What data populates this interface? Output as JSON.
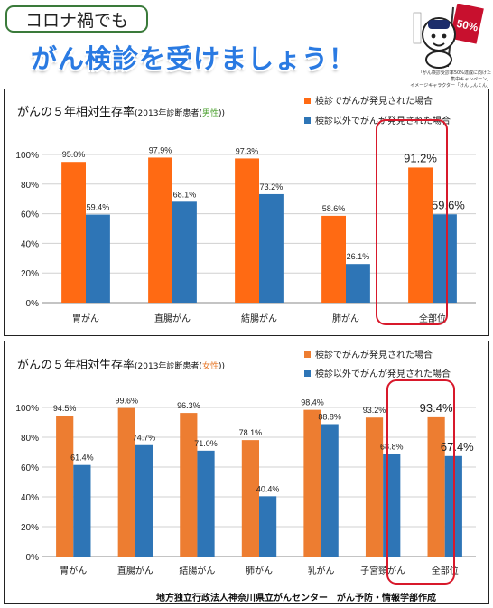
{
  "header": {
    "tag_text": "コロナ禍でも",
    "headline": "がん検診を受けましょう！",
    "campaign_lines": [
      "「がん検診受診率50%達成に向けた",
      "集中キャンペーン」",
      "イメージキャラクター「けんしんくん」"
    ],
    "mascot_flag_text": "50%"
  },
  "colors": {
    "detected": "#ff6a13",
    "other": "#2e75b6",
    "highlight": "#d8192b",
    "tag_border": "#3a7a3a",
    "headline": "#2a7ae2"
  },
  "chart_data": [
    {
      "type": "bar",
      "title": "がんの５年相対生存率",
      "subtitle_pre": "(2013年診断患者(",
      "subtitle_sex": "男性",
      "subtitle_post": "))",
      "sex_color": "#4aa02c",
      "categories": [
        "胃がん",
        "直腸がん",
        "結腸がん",
        "肺がん",
        "全部位"
      ],
      "series": [
        {
          "name": "検診でがんが発見された場合",
          "values": [
            95.0,
            97.9,
            97.3,
            58.6,
            91.2
          ],
          "labels": [
            "95.0%",
            "97.9%",
            "97.3%",
            "58.6%",
            "91.2%"
          ],
          "color": "#ff6a13"
        },
        {
          "name": "検診以外でがんが発見された場合",
          "values": [
            59.4,
            68.1,
            73.2,
            26.1,
            59.6
          ],
          "labels": [
            "59.4%",
            "68.1%",
            "73.2%",
            "26.1%",
            "59.6%"
          ],
          "color": "#2e75b6"
        }
      ],
      "yticks": [
        "0%",
        "20%",
        "40%",
        "60%",
        "80%",
        "100%"
      ],
      "ylim": [
        0,
        100
      ],
      "highlight_category": "全部位",
      "legend_position": "top-right",
      "grid": true
    },
    {
      "type": "bar",
      "title": "がんの５年相対生存率",
      "subtitle_pre": "(2013年診断患者(",
      "subtitle_sex": "女性",
      "subtitle_post": "))",
      "sex_color": "#e8792a",
      "categories": [
        "胃がん",
        "直腸がん",
        "結腸がん",
        "肺がん",
        "乳がん",
        "子宮頸がん",
        "全部位"
      ],
      "series": [
        {
          "name": "検診でがんが発見された場合",
          "values": [
            94.5,
            99.6,
            96.3,
            78.1,
            98.4,
            93.2,
            93.4
          ],
          "labels": [
            "94.5%",
            "99.6%",
            "96.3%",
            "78.1%",
            "98.4%",
            "93.2%",
            "93.4%"
          ],
          "color": "#ed7d31"
        },
        {
          "name": "検診以外でがんが発見された場合",
          "values": [
            61.4,
            74.7,
            71.0,
            40.4,
            88.8,
            68.8,
            67.4
          ],
          "labels": [
            "61.4%",
            "74.7%",
            "71.0%",
            "40.4%",
            "88.8%",
            "68.8%",
            "67.4%"
          ],
          "color": "#2e75b6"
        }
      ],
      "yticks": [
        "0%",
        "20%",
        "40%",
        "60%",
        "80%",
        "100%"
      ],
      "ylim": [
        0,
        100
      ],
      "highlight_category": "全部位",
      "legend_position": "top-right",
      "grid": true
    }
  ],
  "footer": "地方独立行政法人神奈川県立がんセンター　がん予防・情報学部作成"
}
